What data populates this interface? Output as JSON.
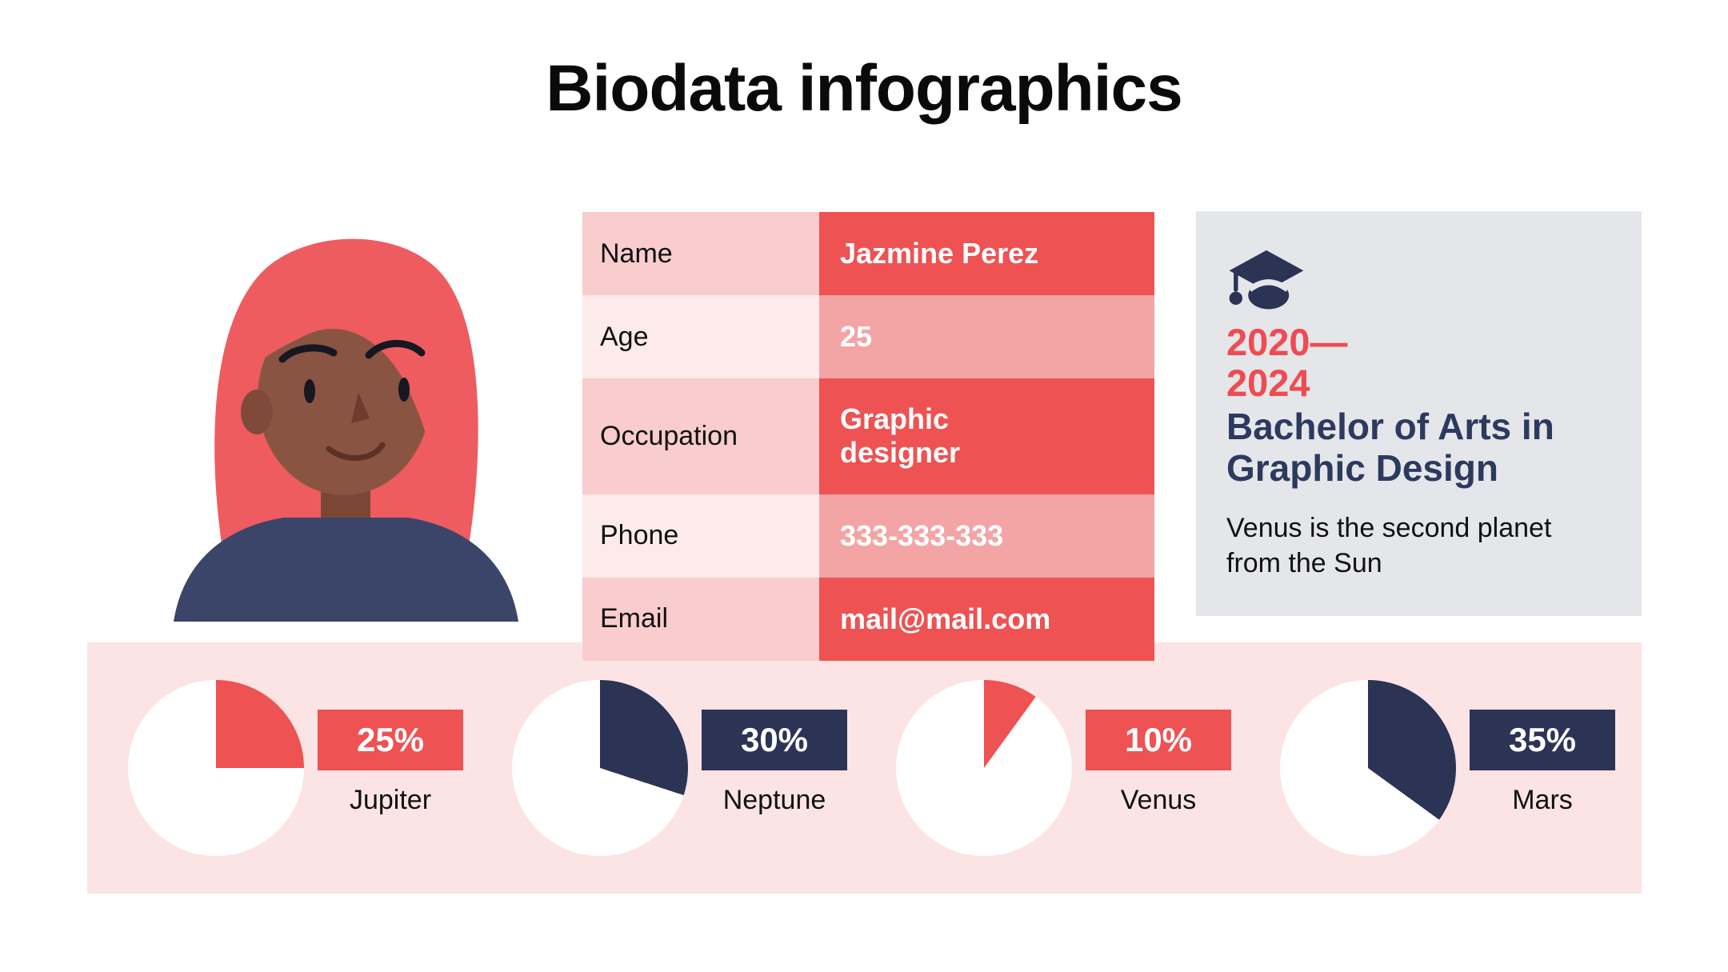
{
  "title": "Biodata infographics",
  "profile": {
    "rows": [
      {
        "label": "Name",
        "value": "Jazmine Perez"
      },
      {
        "label": "Age",
        "value": "25"
      },
      {
        "label": "Occupation",
        "value": "Graphic designer"
      },
      {
        "label": "Phone",
        "value": "333-333-333"
      },
      {
        "label": "Email",
        "value": "mail@mail.com"
      }
    ]
  },
  "education": {
    "icon": "graduation-cap-icon",
    "years": "2020—2024",
    "degree": "Bachelor of Arts in Graphic Design",
    "description": "Venus is the second planet from the Sun"
  },
  "chart_data": {
    "type": "pie",
    "note": "four single-share pies; colored wedge starts at 12 o'clock clockwise, remainder is white",
    "items": [
      {
        "label": "Jupiter",
        "value": 25,
        "value_label": "25%",
        "color": "#ee5253"
      },
      {
        "label": "Neptune",
        "value": 30,
        "value_label": "30%",
        "color": "#2b3455"
      },
      {
        "label": "Venus",
        "value": 10,
        "value_label": "10%",
        "color": "#ee5253"
      },
      {
        "label": "Mars",
        "value": 35,
        "value_label": "35%",
        "color": "#2b3455"
      }
    ]
  },
  "colors": {
    "accent_red": "#ee5253",
    "soft_red": "#f3a5a5",
    "cell_pink": "#f9cdcd",
    "cell_pink_light": "#fdeaea",
    "strip_pink": "#fce4e4",
    "navy": "#2b3455",
    "heading_navy": "#2d3a5f",
    "years_red": "#ef4b52",
    "panel_gray": "#e4e6e9",
    "pie_base_white": "#ffffff"
  }
}
